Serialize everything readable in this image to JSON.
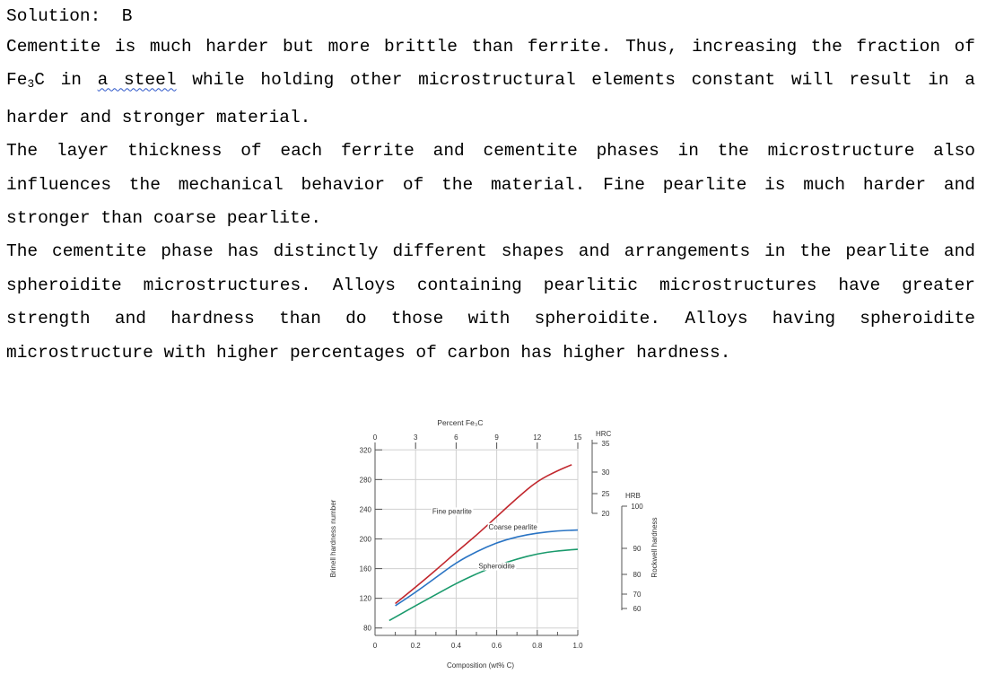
{
  "solution_label": "Solution:  B",
  "paragraphs": {
    "p1_a": "Cementite is much harder but more brittle than ferrite. Thus, increasing the fraction of Fe",
    "p1_sub": "3",
    "p1_b": "C in ",
    "p1_marked": "a steel",
    "p1_c": " while holding other microstructural elements constant will result in a harder and stronger material.",
    "p2": "The layer thickness of each ferrite and cementite phases in the microstructure also influences the mechanical behavior of the material. Fine pearlite is much harder and stronger than coarse pearlite.",
    "p3": "The cementite phase has distinctly different shapes and arrangements in the pearlite and spheroidite microstructures. Alloys containing pearlitic microstructures have greater strength and hardness than do those with spheroidite. Alloys having spheroidite microstructure with higher percentages of carbon has higher hardness."
  },
  "colors": {
    "fine_pearlite": "#c1272d",
    "coarse_pearlite": "#2a74c4",
    "spheroidite": "#1a9a6c",
    "grid": "#d0d0d0"
  },
  "chart_data": {
    "type": "line",
    "xlabel": "Composition (wt% C)",
    "ylabel": "Brinell hardness number",
    "top_axis_label": "Percent Fe₃C",
    "right_axis_label": "Rockwell hardness",
    "xlim": [
      0,
      1.0
    ],
    "ylim": [
      70,
      330
    ],
    "x_ticks": [
      "0",
      "0.2",
      "0.4",
      "0.6",
      "0.8",
      "1.0"
    ],
    "y_ticks": [
      "80",
      "120",
      "160",
      "200",
      "240",
      "280",
      "320"
    ],
    "top_ticks": [
      "0",
      "3",
      "6",
      "9",
      "12",
      "15"
    ],
    "hrc_label": "HRC",
    "hrc_ticks": [
      "35",
      "30",
      "25",
      "20"
    ],
    "hrb_label": "HRB",
    "hrb_ticks": [
      "100",
      "90",
      "80",
      "70",
      "60"
    ],
    "grid": true,
    "series": [
      {
        "name": "Fine pearlite",
        "x": [
          0.1,
          0.2,
          0.3,
          0.4,
          0.5,
          0.6,
          0.7,
          0.8,
          0.9,
          0.97
        ],
        "y": [
          113,
          135,
          158,
          182,
          205,
          230,
          255,
          278,
          292,
          300
        ]
      },
      {
        "name": "Coarse pearlite",
        "x": [
          0.1,
          0.2,
          0.3,
          0.4,
          0.5,
          0.6,
          0.7,
          0.8,
          0.9,
          1.0
        ],
        "y": [
          110,
          128,
          148,
          168,
          183,
          195,
          203,
          208,
          211,
          212
        ]
      },
      {
        "name": "Spheroidite",
        "x": [
          0.07,
          0.2,
          0.3,
          0.4,
          0.5,
          0.6,
          0.7,
          0.8,
          0.9,
          1.0
        ],
        "y": [
          90,
          110,
          125,
          140,
          153,
          164,
          173,
          180,
          184,
          186
        ]
      }
    ]
  }
}
